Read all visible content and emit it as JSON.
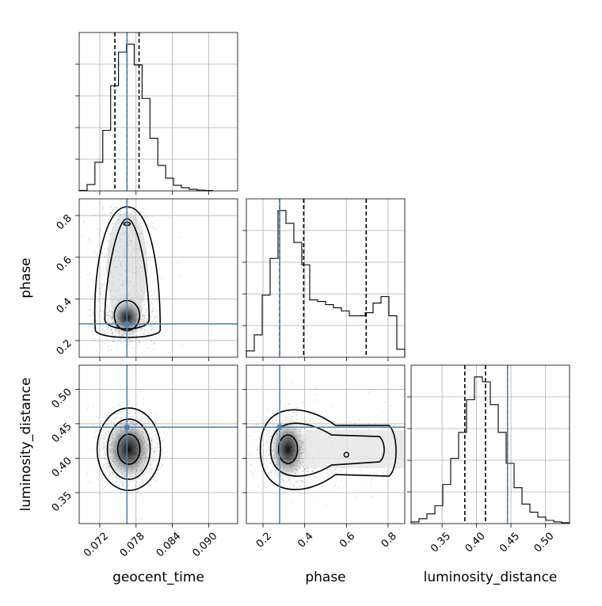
{
  "chart_data": {
    "type": "corner",
    "parameters": [
      {
        "name": "geocent_time",
        "label": "geocent_time",
        "range": [
          0.0686,
          0.0948
        ],
        "ticks": [
          0.072,
          0.078,
          0.084,
          0.09
        ],
        "tick_labels": [
          "0.072",
          "0.078",
          "0.084",
          "0.090"
        ],
        "quantiles": [
          0.0745,
          0.0765,
          0.0785
        ],
        "truth": 0.0765
      },
      {
        "name": "phase",
        "label": "phase",
        "range": [
          0.12,
          0.88
        ],
        "ticks": [
          0.2,
          0.4,
          0.6,
          0.8
        ],
        "tick_labels": [
          "0.2",
          "0.4",
          "0.6",
          "0.8"
        ],
        "quantiles": [
          0.28,
          0.395,
          0.695
        ],
        "truth": 0.28
      },
      {
        "name": "luminosity_distance",
        "label": "luminosity_distance",
        "range": [
          0.305,
          0.535
        ],
        "ticks": [
          0.35,
          0.4,
          0.45,
          0.5
        ],
        "tick_labels": [
          "0.35",
          "0.40",
          "0.45",
          "0.50"
        ],
        "quantiles": [
          0.383,
          0.413,
          0.445
        ],
        "truth": 0.445
      }
    ],
    "histograms": [
      {
        "param": "geocent_time",
        "bin_edges": [
          0.0686,
          0.0699,
          0.0712,
          0.0725,
          0.0738,
          0.0751,
          0.0764,
          0.0777,
          0.079,
          0.0803,
          0.0816,
          0.0829,
          0.0842,
          0.0855,
          0.0868,
          0.0881,
          0.0894,
          0.0907
        ],
        "counts": [
          0.3,
          4,
          18,
          38,
          66,
          87,
          92,
          79,
          58,
          33,
          16,
          8,
          3.5,
          2,
          1,
          0.5,
          0.2
        ]
      },
      {
        "param": "phase",
        "bin_edges": [
          0.12,
          0.158,
          0.196,
          0.234,
          0.272,
          0.31,
          0.348,
          0.386,
          0.424,
          0.462,
          0.5,
          0.538,
          0.576,
          0.614,
          0.652,
          0.69,
          0.728,
          0.766,
          0.804,
          0.842,
          0.88
        ],
        "counts": [
          4,
          14,
          39,
          62,
          92,
          84,
          72,
          58,
          36,
          35,
          33,
          31,
          29,
          26,
          26,
          28,
          34,
          38,
          26,
          5
        ]
      },
      {
        "param": "luminosity_distance",
        "bin_edges": [
          0.305,
          0.3165,
          0.328,
          0.3395,
          0.351,
          0.3625,
          0.374,
          0.3855,
          0.397,
          0.4085,
          0.42,
          0.4315,
          0.443,
          0.4545,
          0.466,
          0.4775,
          0.489,
          0.5005,
          0.512,
          0.5235,
          0.535
        ],
        "counts": [
          1,
          3,
          6,
          11,
          24,
          40,
          56,
          76,
          90,
          87,
          73,
          56,
          37,
          22,
          12,
          7,
          4,
          2,
          1,
          0.5
        ]
      }
    ],
    "pairs": [
      {
        "x": "geocent_time",
        "y": "phase",
        "center": [
          0.0765,
          0.3
        ],
        "spread": [
          0.0025,
          0.12
        ],
        "contour_levels": [
          0.39,
          0.86,
          0.99
        ]
      },
      {
        "x": "geocent_time",
        "y": "luminosity_distance",
        "center": [
          0.0768,
          0.413
        ],
        "spread": [
          0.0022,
          0.025
        ],
        "contour_levels": [
          0.39,
          0.86,
          0.99
        ]
      },
      {
        "x": "phase",
        "y": "luminosity_distance",
        "center": [
          0.32,
          0.413
        ],
        "spread": [
          0.08,
          0.025
        ],
        "contour_levels": [
          0.39,
          0.86,
          0.99
        ]
      }
    ],
    "truth_color": "#4682b4",
    "quantile_style": "dashed",
    "grid": true
  }
}
